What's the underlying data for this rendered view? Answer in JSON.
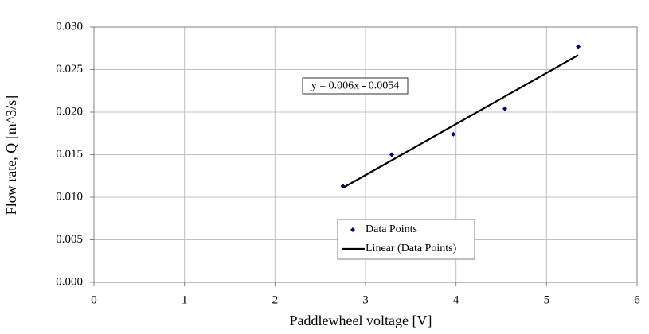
{
  "chart_data": {
    "type": "scatter",
    "x_label": "Paddlewheel voltage [V]",
    "y_label": "Flow rate, Q [m^3/s]",
    "annotations": [
      "y = 0.006x - 0.0054"
    ],
    "xlim": [
      0,
      6
    ],
    "xticks": [
      0,
      1,
      2,
      3,
      4,
      5,
      6
    ],
    "ylim": [
      0,
      0.03
    ],
    "yticks": [
      {
        "value": 0,
        "label": "0.000"
      },
      {
        "value": 0.005,
        "label": "0.005"
      },
      {
        "value": 0.01,
        "label": "0.010"
      },
      {
        "value": 0.015,
        "label": "0.015"
      },
      {
        "value": 0.02,
        "label": "0.020"
      },
      {
        "value": 0.025,
        "label": "0.025"
      },
      {
        "value": 0.03,
        "label": "0.030"
      }
    ],
    "grid": true,
    "legend": "lower center",
    "series": [
      {
        "name": "Data Points",
        "color": "#000080",
        "style": "markers",
        "x": [
          2.75,
          3.29,
          3.97,
          4.54,
          5.35
        ],
        "values": [
          0.0113,
          0.015,
          0.0174,
          0.0204,
          0.0277
        ]
      },
      {
        "name": "Linear (Data Points)",
        "color": "#000000",
        "style": "line",
        "x": [
          2.75,
          5.35
        ],
        "values": [
          0.0111,
          0.0267
        ]
      }
    ]
  }
}
